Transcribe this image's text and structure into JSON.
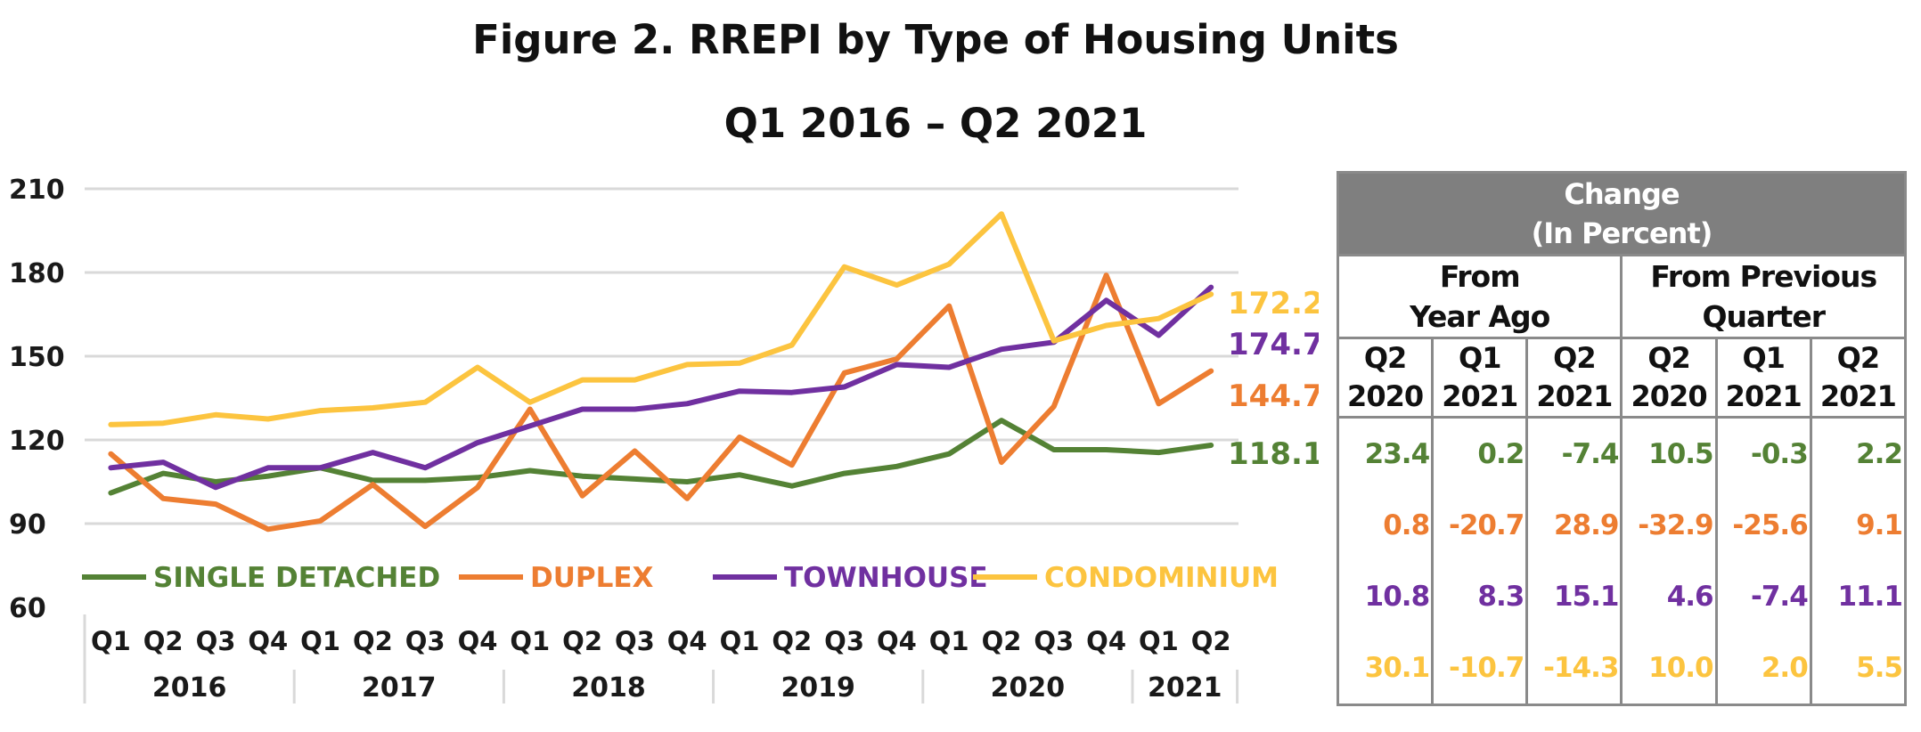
{
  "figure": {
    "title_line1": "Figure 2. RREPI by Type of Housing Units",
    "title_line2": "Q1 2016 – Q2 2021"
  },
  "chart_data": {
    "type": "line",
    "ylim": [
      60,
      210
    ],
    "yticks": [
      60,
      90,
      120,
      150,
      180,
      210
    ],
    "grid": true,
    "legend_position": "bottom-inside",
    "x_quarters": [
      "Q1",
      "Q2",
      "Q3",
      "Q4",
      "Q1",
      "Q2",
      "Q3",
      "Q4",
      "Q1",
      "Q2",
      "Q3",
      "Q4",
      "Q1",
      "Q2",
      "Q3",
      "Q4",
      "Q1",
      "Q2",
      "Q3",
      "Q4",
      "Q1",
      "Q2"
    ],
    "x_years": [
      {
        "label": "2016",
        "span": 4
      },
      {
        "label": "2017",
        "span": 4
      },
      {
        "label": "2018",
        "span": 4
      },
      {
        "label": "2019",
        "span": 4
      },
      {
        "label": "2020",
        "span": 4
      },
      {
        "label": "2021",
        "span": 2
      }
    ],
    "series": [
      {
        "name": "SINGLE DETACHED",
        "color": "#548235",
        "end_label": "118.1",
        "values": [
          101,
          108,
          105,
          107,
          110,
          105.5,
          105.5,
          106.5,
          109,
          107,
          106,
          105,
          107.5,
          103.5,
          108,
          110.5,
          115,
          127,
          116.5,
          116.5,
          115.5,
          118.1
        ]
      },
      {
        "name": "DUPLEX",
        "color": "#ed7d31",
        "end_label": "144.7",
        "values": [
          115,
          99,
          97,
          88,
          91,
          104,
          89,
          103,
          131,
          100,
          116,
          99,
          121,
          111,
          144,
          149,
          168,
          112,
          132,
          179,
          133,
          144.7
        ]
      },
      {
        "name": "TOWNHOUSE",
        "color": "#7030a0",
        "end_label": "174.7",
        "values": [
          110,
          112,
          103,
          110,
          110,
          115.5,
          110,
          119,
          125,
          131,
          131,
          133,
          137.5,
          137,
          139,
          147,
          146,
          152.5,
          155,
          170,
          157.5,
          174.7
        ]
      },
      {
        "name": "CONDOMINIUM",
        "color": "#fcc43f",
        "end_label": "172.2",
        "values": [
          125.5,
          126,
          129,
          127.5,
          130.5,
          131.5,
          133.5,
          146,
          133.5,
          141.5,
          141.5,
          147,
          147.5,
          154,
          182,
          175.5,
          183,
          201,
          155.5,
          161,
          163.5,
          172.2
        ]
      }
    ]
  },
  "table": {
    "header_main_line1": "Change",
    "header_main_line2": "(In Percent)",
    "group1_line1": "From",
    "group1_line2": "Year Ago",
    "group2_line1": "From Previous",
    "group2_line2": "Quarter",
    "columns": [
      {
        "q": "Q2",
        "y": "2020"
      },
      {
        "q": "Q1",
        "y": "2021"
      },
      {
        "q": "Q2",
        "y": "2021"
      },
      {
        "q": "Q2",
        "y": "2020"
      },
      {
        "q": "Q1",
        "y": "2021"
      },
      {
        "q": "Q2",
        "y": "2021"
      }
    ],
    "rows": [
      {
        "color": "#548235",
        "values": [
          "23.4",
          "0.2",
          "-7.4",
          "10.5",
          "-0.3",
          "2.2"
        ]
      },
      {
        "color": "#ed7d31",
        "values": [
          "0.8",
          "-20.7",
          "28.9",
          "-32.9",
          "-25.6",
          "9.1"
        ]
      },
      {
        "color": "#7030a0",
        "values": [
          "10.8",
          "8.3",
          "15.1",
          "4.6",
          "-7.4",
          "11.1"
        ]
      },
      {
        "color": "#fcc43f",
        "values": [
          "30.1",
          "-10.7",
          "-14.3",
          "10.0",
          "2.0",
          "5.5"
        ]
      }
    ]
  }
}
